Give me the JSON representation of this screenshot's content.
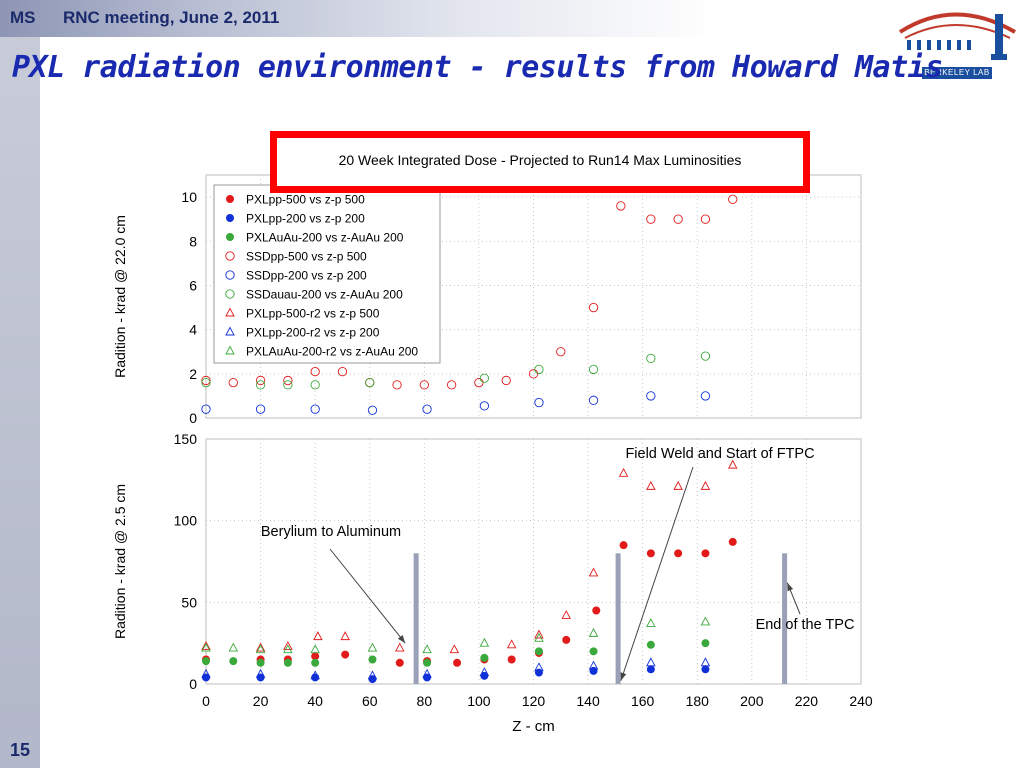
{
  "header": {
    "author": "MS",
    "meeting": "RNC meeting, June 2, 2011"
  },
  "title": "PXL radiation environment - results from Howard Matis",
  "slide_number": "15",
  "logo": {
    "text": "BERKELEY LAB"
  },
  "colors": {
    "red": "#e31a1a",
    "blue": "#1031d8",
    "green": "#3aa83a",
    "bar": "#9aa0b8"
  },
  "chart_data": [
    {
      "type": "scatter",
      "title": "20 Week Integrated Dose - Projected to Run14 Max Luminosities",
      "xlabel": "",
      "ylabel": "Radition - krad @ 22.0 cm",
      "xlim": [
        0,
        240
      ],
      "ylim": [
        0,
        11
      ],
      "yticks": [
        "0",
        "2",
        "4",
        "6",
        "8",
        "10"
      ],
      "grid": true,
      "legend_position": "top-left",
      "legend": [
        {
          "label": "PXLpp-500 vs z-p 500",
          "marker": "circle-filled",
          "color": "red"
        },
        {
          "label": "PXLpp-200 vs z-p 200",
          "marker": "circle-filled",
          "color": "blue"
        },
        {
          "label": "PXLAuAu-200 vs z-AuAu 200",
          "marker": "circle-filled",
          "color": "green"
        },
        {
          "label": "SSDpp-500 vs z-p 500",
          "marker": "circle-open",
          "color": "red"
        },
        {
          "label": "SSDpp-200 vs z-p 200",
          "marker": "circle-open",
          "color": "blue"
        },
        {
          "label": "SSDauau-200 vs z-AuAu 200",
          "marker": "circle-open",
          "color": "green"
        },
        {
          "label": "PXLpp-500-r2 vs z-p 500",
          "marker": "triangle-open",
          "color": "red"
        },
        {
          "label": "PXLpp-200-r2 vs z-p 200",
          "marker": "triangle-open",
          "color": "blue"
        },
        {
          "label": "PXLAuAu-200-r2 vs z-AuAu 200",
          "marker": "triangle-open",
          "color": "green"
        }
      ],
      "series": [
        {
          "name": "SSDpp-500 vs z-p 500",
          "marker": "circle-open",
          "color": "red",
          "x": [
            0,
            10,
            20,
            30,
            40,
            50,
            60,
            70,
            80,
            90,
            100,
            110,
            120,
            130,
            142,
            152,
            163,
            173,
            183,
            193
          ],
          "y": [
            1.7,
            1.6,
            1.7,
            1.7,
            2.1,
            2.1,
            1.6,
            1.5,
            1.5,
            1.5,
            1.6,
            1.7,
            2.0,
            3.0,
            5.0,
            9.6,
            9.0,
            9.0,
            9.0,
            9.9
          ]
        },
        {
          "name": "SSDpp-200 vs z-p 200",
          "marker": "circle-open",
          "color": "blue",
          "x": [
            0,
            20,
            40,
            61,
            81,
            102,
            122,
            142,
            163,
            183
          ],
          "y": [
            0.4,
            0.4,
            0.4,
            0.35,
            0.4,
            0.55,
            0.7,
            0.8,
            1.0,
            1.0
          ]
        },
        {
          "name": "SSDauau-200 vs z-AuAu 200",
          "marker": "circle-open",
          "color": "green",
          "x": [
            0,
            20,
            30,
            40,
            60,
            102,
            122,
            142,
            163,
            183
          ],
          "y": [
            1.6,
            1.5,
            1.5,
            1.5,
            1.6,
            1.8,
            2.2,
            2.2,
            2.7,
            2.8
          ]
        }
      ]
    },
    {
      "type": "scatter",
      "xlabel": "Z - cm",
      "ylabel": "Radition - krad @ 2.5 cm",
      "xlim": [
        0,
        240
      ],
      "ylim": [
        0,
        150
      ],
      "xticks": [
        "0",
        "20",
        "40",
        "60",
        "80",
        "100",
        "120",
        "140",
        "160",
        "180",
        "200",
        "220",
        "240"
      ],
      "yticks": [
        "0",
        "50",
        "100",
        "150"
      ],
      "grid": true,
      "series": [
        {
          "name": "PXLpp-500 vs z-p 500",
          "marker": "circle-filled",
          "color": "red",
          "x": [
            0,
            20,
            30,
            40,
            51,
            71,
            81,
            92,
            102,
            112,
            122,
            132,
            143,
            153,
            163,
            173,
            183,
            193
          ],
          "y": [
            15,
            15,
            15,
            17,
            18,
            13,
            14,
            13,
            15,
            15,
            19,
            27,
            45,
            85,
            80,
            80,
            80,
            87
          ]
        },
        {
          "name": "PXLpp-200 vs z-p 200",
          "marker": "circle-filled",
          "color": "blue",
          "x": [
            0,
            20,
            40,
            61,
            81,
            102,
            122,
            142,
            163,
            183
          ],
          "y": [
            4,
            4,
            4,
            3,
            4,
            5,
            7,
            8,
            9,
            9
          ]
        },
        {
          "name": "PXLAuAu-200 vs z-AuAu 200",
          "marker": "circle-filled",
          "color": "green",
          "x": [
            0,
            10,
            20,
            30,
            40,
            61,
            81,
            102,
            122,
            142,
            163,
            183
          ],
          "y": [
            14,
            14,
            13,
            13,
            13,
            15,
            13,
            16,
            20,
            20,
            24,
            25
          ]
        },
        {
          "name": "PXLpp-500-r2 vs z-p 500",
          "marker": "triangle-open",
          "color": "red",
          "x": [
            0,
            20,
            30,
            41,
            51,
            71,
            91,
            112,
            122,
            132,
            142,
            153,
            163,
            173,
            183,
            193
          ],
          "y": [
            23,
            22,
            23,
            29,
            29,
            22,
            21,
            24,
            30,
            42,
            68,
            129,
            121,
            121,
            121,
            134
          ]
        },
        {
          "name": "PXLpp-200-r2 vs z-p 200",
          "marker": "triangle-open",
          "color": "blue",
          "x": [
            0,
            20,
            40,
            61,
            81,
            102,
            122,
            142,
            163,
            183
          ],
          "y": [
            6,
            6,
            5,
            5,
            6,
            7,
            10,
            11,
            13,
            13
          ]
        },
        {
          "name": "PXLAuAu-200-r2 vs z-AuAu 200",
          "marker": "triangle-open",
          "color": "green",
          "x": [
            0,
            10,
            20,
            30,
            40,
            61,
            81,
            102,
            122,
            142,
            163,
            183
          ],
          "y": [
            22,
            22,
            21,
            21,
            21,
            22,
            21,
            25,
            28,
            31,
            37,
            38
          ]
        }
      ],
      "vertical_bars": [
        {
          "x": 77,
          "y": 80
        },
        {
          "x": 151,
          "y": 80
        },
        {
          "x": 212,
          "y": 80
        }
      ],
      "annotations": [
        {
          "text": "Berylium to Aluminum",
          "points_to": {
            "x": 73,
            "y": 25
          }
        },
        {
          "text": "Field Weld and Start of FTPC",
          "points_to": {
            "x": 152,
            "y": 2
          }
        },
        {
          "text": "End of the TPC",
          "points_to": {
            "x": 213,
            "y": 62
          }
        }
      ]
    }
  ]
}
